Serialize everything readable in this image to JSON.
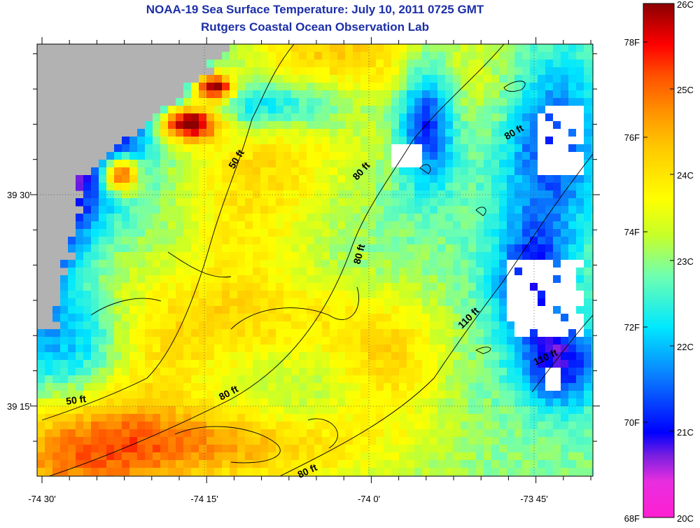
{
  "header": {
    "title": "NOAA-19 Sea Surface Temperature:  July 10, 2011 0725 GMT",
    "subtitle": "Rutgers Coastal Ocean Observation Lab"
  },
  "axes": {
    "lon_labels": [
      "-74 30'",
      "-74 15'",
      "-74 0'",
      "-73 45'"
    ],
    "lat_labels": [
      "39 30'",
      "39 15'"
    ]
  },
  "depth_contour_labels": [
    "50 ft",
    "80 ft",
    "80 ft",
    "80 ft",
    "50 ft",
    "80 ft",
    "110 ft",
    "110 ft",
    "80 ft"
  ],
  "colorbar": {
    "celsius_labels": [
      "26C",
      "25C",
      "24C",
      "23C",
      "22C",
      "21C",
      "20C"
    ],
    "fahrenheit_labels": [
      "78F",
      "76F",
      "74F",
      "72F",
      "70F",
      "68F"
    ]
  },
  "colors": {
    "title": "#1c2fa8",
    "land": "#b2b2b2",
    "cloud": "#ffffff",
    "contour": "#000000"
  }
}
